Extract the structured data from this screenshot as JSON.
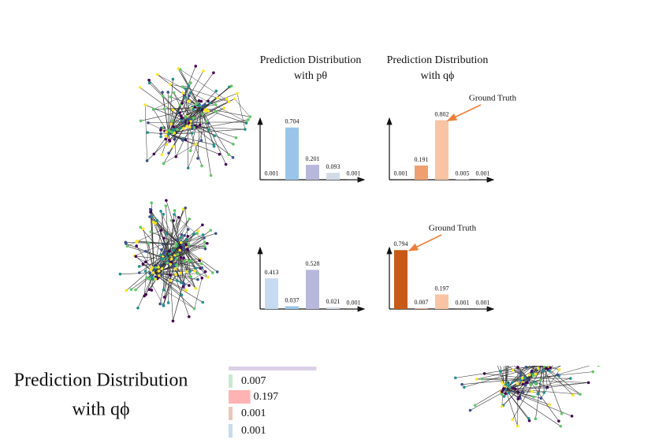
{
  "chart_data": [
    {
      "type": "bar",
      "title": "Prediction Distribution",
      "subtitle": "with pθ",
      "categories": [
        null,
        null,
        null,
        null,
        null
      ],
      "values": [
        0.001,
        0.704,
        0.201,
        0.093,
        0.001
      ],
      "colors": [
        "#c6dbef",
        "#9ac5e8",
        "#b8b8dc",
        "#d3dbe6",
        "#dde6f2"
      ],
      "ylim": [
        0,
        0.85
      ]
    },
    {
      "type": "bar",
      "title": "Prediction Distribution",
      "subtitle": "with qϕ",
      "categories": [
        null,
        null,
        null,
        null,
        null
      ],
      "values": [
        0.001,
        0.191,
        0.802,
        0.005,
        0.001
      ],
      "colors": [
        "#c85a17",
        "#f0a070",
        "#f8c4a4",
        "#fde0d0",
        "#fdf0e2"
      ],
      "ylim": [
        0,
        0.85
      ],
      "annotation": "Ground Truth"
    },
    {
      "type": "bar",
      "categories": [
        null,
        null,
        null,
        null,
        null
      ],
      "values": [
        0.413,
        0.037,
        0.528,
        0.021,
        0.001
      ],
      "colors": [
        "#c6dbef",
        "#9ac5e8",
        "#b8b8dc",
        "#d3dbe6",
        "#dde6f2"
      ],
      "ylim": [
        0,
        0.85
      ]
    },
    {
      "type": "bar",
      "categories": [
        null,
        null,
        null,
        null,
        null
      ],
      "values": [
        0.794,
        0.007,
        0.197,
        0.001,
        0.001
      ],
      "colors": [
        "#c85a17",
        "#f0a070",
        "#f8c4a4",
        "#fde0d0",
        "#fdf0e2"
      ],
      "ylim": [
        0,
        0.85
      ],
      "annotation": "Ground Truth"
    },
    {
      "type": "hbar",
      "title": "Prediction Distribution",
      "subtitle": "with qϕ",
      "categories": [
        null,
        null,
        null,
        null,
        null
      ],
      "values": [
        0.794,
        0.007,
        0.197,
        0.001,
        0.001
      ],
      "colors": [
        "#dccfe8",
        "#c7e9d0",
        "#ffb3b3",
        "#e8c8b8",
        "#c6dbef"
      ],
      "xlim": [
        0,
        0.82
      ]
    }
  ]
}
